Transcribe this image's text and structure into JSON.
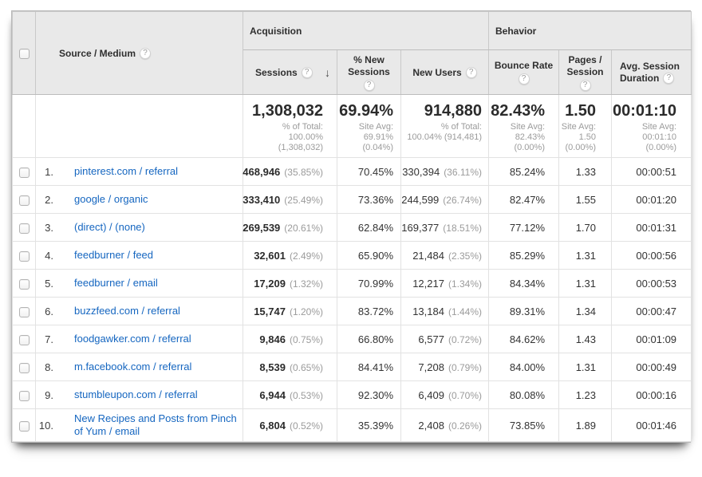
{
  "colors": {
    "link": "#1566c0",
    "header_bg": "#e9e9e9",
    "grid": "#e2e2e2",
    "header_border": "#c9c9c9",
    "text": "#333333",
    "muted": "#9b9b9b"
  },
  "header": {
    "source_medium": "Source / Medium",
    "groups": {
      "acquisition": "Acquisition",
      "behavior": "Behavior"
    },
    "sessions": "Sessions",
    "pct_new_sessions_line1": "% New",
    "pct_new_sessions_line2": "Sessions",
    "new_users": "New Users",
    "bounce_rate": "Bounce Rate",
    "pages_session_line1": "Pages /",
    "pages_session_line2": "Session",
    "avg_session_line1": "Avg. Session",
    "avg_session_line2": "Duration",
    "help_glyph": "?",
    "sort_arrow_glyph": "↓",
    "sessions_sort": "descending"
  },
  "totals": {
    "sessions": "1,308,032",
    "sessions_sub1": "% of Total:",
    "sessions_sub2": "100.00%",
    "sessions_sub3": "(1,308,032)",
    "new_sessions": "69.94%",
    "new_sessions_sub1": "Site Avg:",
    "new_sessions_sub2": "69.91%",
    "new_sessions_sub3": "(0.04%)",
    "new_users": "914,880",
    "new_users_sub1": "% of Total:",
    "new_users_sub2": "100.04% (914,481)",
    "bounce_rate": "82.43%",
    "bounce_sub1": "Site Avg:",
    "bounce_sub2": "82.43%",
    "bounce_sub3": "(0.00%)",
    "pages_session": "1.50",
    "pages_sub1": "Site Avg:",
    "pages_sub2": "1.50",
    "pages_sub3": "(0.00%)",
    "duration": "00:01:10",
    "duration_sub1": "Site Avg:",
    "duration_sub2": "00:01:10",
    "duration_sub3": "(0.00%)"
  },
  "rows": [
    {
      "index": "1.",
      "source": "pinterest.com / referral",
      "sessions": "468,946",
      "sessions_pct": "(35.85%)",
      "new_sessions": "70.45%",
      "new_users": "330,394",
      "new_users_pct": "(36.11%)",
      "bounce": "85.24%",
      "pages": "1.33",
      "duration": "00:00:51"
    },
    {
      "index": "2.",
      "source": "google / organic",
      "sessions": "333,410",
      "sessions_pct": "(25.49%)",
      "new_sessions": "73.36%",
      "new_users": "244,599",
      "new_users_pct": "(26.74%)",
      "bounce": "82.47%",
      "pages": "1.55",
      "duration": "00:01:20"
    },
    {
      "index": "3.",
      "source": "(direct) / (none)",
      "sessions": "269,539",
      "sessions_pct": "(20.61%)",
      "new_sessions": "62.84%",
      "new_users": "169,377",
      "new_users_pct": "(18.51%)",
      "bounce": "77.12%",
      "pages": "1.70",
      "duration": "00:01:31"
    },
    {
      "index": "4.",
      "source": "feedburner / feed",
      "sessions": "32,601",
      "sessions_pct": "(2.49%)",
      "new_sessions": "65.90%",
      "new_users": "21,484",
      "new_users_pct": "(2.35%)",
      "bounce": "85.29%",
      "pages": "1.31",
      "duration": "00:00:56"
    },
    {
      "index": "5.",
      "source": "feedburner / email",
      "sessions": "17,209",
      "sessions_pct": "(1.32%)",
      "new_sessions": "70.99%",
      "new_users": "12,217",
      "new_users_pct": "(1.34%)",
      "bounce": "84.34%",
      "pages": "1.31",
      "duration": "00:00:53"
    },
    {
      "index": "6.",
      "source": "buzzfeed.com / referral",
      "sessions": "15,747",
      "sessions_pct": "(1.20%)",
      "new_sessions": "83.72%",
      "new_users": "13,184",
      "new_users_pct": "(1.44%)",
      "bounce": "89.31%",
      "pages": "1.34",
      "duration": "00:00:47"
    },
    {
      "index": "7.",
      "source": "foodgawker.com / referral",
      "sessions": "9,846",
      "sessions_pct": "(0.75%)",
      "new_sessions": "66.80%",
      "new_users": "6,577",
      "new_users_pct": "(0.72%)",
      "bounce": "84.62%",
      "pages": "1.43",
      "duration": "00:01:09"
    },
    {
      "index": "8.",
      "source": "m.facebook.com / referral",
      "sessions": "8,539",
      "sessions_pct": "(0.65%)",
      "new_sessions": "84.41%",
      "new_users": "7,208",
      "new_users_pct": "(0.79%)",
      "bounce": "84.00%",
      "pages": "1.31",
      "duration": "00:00:49"
    },
    {
      "index": "9.",
      "source": "stumbleupon.com / referral",
      "sessions": "6,944",
      "sessions_pct": "(0.53%)",
      "new_sessions": "92.30%",
      "new_users": "6,409",
      "new_users_pct": "(0.70%)",
      "bounce": "80.08%",
      "pages": "1.23",
      "duration": "00:00:16"
    },
    {
      "index": "10.",
      "source": "New Recipes and Posts from Pinch of Yum / email",
      "sessions": "6,804",
      "sessions_pct": "(0.52%)",
      "new_sessions": "35.39%",
      "new_users": "2,408",
      "new_users_pct": "(0.26%)",
      "bounce": "73.85%",
      "pages": "1.89",
      "duration": "00:01:46"
    }
  ]
}
